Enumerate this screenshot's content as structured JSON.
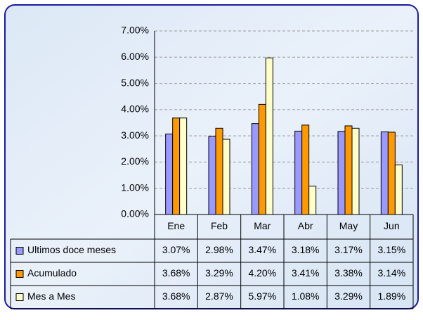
{
  "chart_data": {
    "type": "bar",
    "categories": [
      "Ene",
      "Feb",
      "Mar",
      "Abr",
      "May",
      "Jun"
    ],
    "series": [
      {
        "name": "Ultimos doce meses",
        "color": "#9999ff",
        "values": [
          3.07,
          2.98,
          3.47,
          3.18,
          3.17,
          3.15
        ],
        "value_labels": [
          "3.07%",
          "2.98%",
          "3.47%",
          "3.18%",
          "3.17%",
          "3.15%"
        ]
      },
      {
        "name": "Acumulado",
        "color": "#ff9900",
        "values": [
          3.68,
          3.29,
          4.2,
          3.41,
          3.38,
          3.14
        ],
        "value_labels": [
          "3.68%",
          "3.29%",
          "4.20%",
          "3.41%",
          "3.38%",
          "3.14%"
        ]
      },
      {
        "name": "Mes a Mes",
        "color": "#ffffcc",
        "values": [
          3.68,
          2.87,
          5.97,
          1.08,
          3.29,
          1.89
        ],
        "value_labels": [
          "3.68%",
          "2.87%",
          "5.97%",
          "1.08%",
          "3.29%",
          "1.89%"
        ]
      }
    ],
    "ylim": [
      0,
      7
    ],
    "yticks": [
      {
        "value": 0,
        "label": "0.00%"
      },
      {
        "value": 1,
        "label": "1.00%"
      },
      {
        "value": 2,
        "label": "2.00%"
      },
      {
        "value": 3,
        "label": "3.00%"
      },
      {
        "value": 4,
        "label": "4.00%"
      },
      {
        "value": 5,
        "label": "5.00%"
      },
      {
        "value": 6,
        "label": "6.00%"
      },
      {
        "value": 7,
        "label": "7.00%"
      }
    ],
    "grid": true
  }
}
